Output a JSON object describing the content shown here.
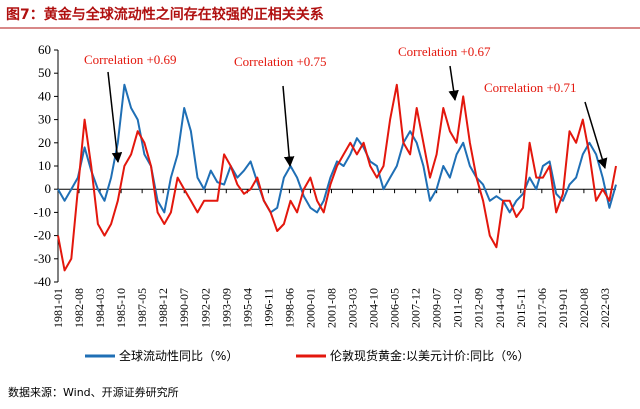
{
  "chart_data": {
    "type": "line",
    "title": "图7：黄金与全球流动性之间存在较强的正相关关系",
    "source": "数据来源：Wind、开源证券研究所",
    "x": [
      "1981-01",
      "1981-07",
      "1982-01",
      "1982-07",
      "1983-01",
      "1983-07",
      "1984-01",
      "1984-07",
      "1985-01",
      "1985-07",
      "1986-01",
      "1986-07",
      "1987-01",
      "1987-07",
      "1988-01",
      "1988-07",
      "1989-01",
      "1989-07",
      "1990-01",
      "1990-07",
      "1991-01",
      "1991-07",
      "1992-01",
      "1992-07",
      "1993-01",
      "1993-07",
      "1994-01",
      "1994-07",
      "1995-01",
      "1995-07",
      "1996-01",
      "1996-07",
      "1997-01",
      "1997-07",
      "1998-01",
      "1998-07",
      "1999-01",
      "1999-07",
      "2000-01",
      "2000-07",
      "2001-01",
      "2001-07",
      "2002-01",
      "2002-07",
      "2003-01",
      "2003-07",
      "2004-01",
      "2004-07",
      "2005-01",
      "2005-07",
      "2006-01",
      "2006-07",
      "2007-01",
      "2007-07",
      "2008-01",
      "2008-07",
      "2009-01",
      "2009-07",
      "2010-01",
      "2010-07",
      "2011-01",
      "2011-07",
      "2012-01",
      "2012-07",
      "2013-01",
      "2013-07",
      "2014-01",
      "2014-07",
      "2015-01",
      "2015-07",
      "2016-01",
      "2016-07",
      "2017-01",
      "2017-07",
      "2018-01",
      "2018-07",
      "2019-01",
      "2019-07",
      "2020-01",
      "2020-07",
      "2021-01",
      "2021-07",
      "2022-01",
      "2022-07",
      "2023-01"
    ],
    "series": [
      {
        "name": "全球流动性同比（%）",
        "color": "#1f6fb5",
        "values": [
          0,
          -5,
          0,
          5,
          18,
          8,
          0,
          -5,
          5,
          20,
          45,
          35,
          30,
          15,
          10,
          -5,
          -10,
          5,
          15,
          35,
          25,
          5,
          0,
          8,
          3,
          2,
          10,
          5,
          8,
          12,
          3,
          -5,
          -10,
          -8,
          5,
          10,
          5,
          -3,
          -8,
          -10,
          -5,
          5,
          12,
          10,
          15,
          22,
          18,
          12,
          10,
          0,
          5,
          10,
          20,
          25,
          20,
          10,
          -5,
          0,
          10,
          5,
          15,
          20,
          10,
          5,
          2,
          -5,
          -3,
          -5,
          -10,
          -5,
          -2,
          5,
          0,
          10,
          12,
          -2,
          -5,
          2,
          5,
          15,
          20,
          15,
          5,
          -8,
          2
        ]
      },
      {
        "name": "伦敦现货黄金:以美元计价:同比（%）",
        "color": "#e3170d",
        "values": [
          -20,
          -35,
          -30,
          0,
          30,
          10,
          -15,
          -20,
          -15,
          -5,
          10,
          15,
          25,
          20,
          10,
          -10,
          -15,
          -10,
          5,
          0,
          -5,
          -10,
          -5,
          -5,
          -5,
          15,
          10,
          2,
          -2,
          0,
          5,
          -5,
          -10,
          -18,
          -15,
          -5,
          -10,
          0,
          5,
          -5,
          -10,
          2,
          10,
          15,
          20,
          15,
          20,
          10,
          5,
          10,
          30,
          45,
          20,
          15,
          35,
          20,
          5,
          15,
          35,
          25,
          20,
          40,
          20,
          5,
          -5,
          -20,
          -25,
          -5,
          -5,
          -12,
          -8,
          20,
          5,
          5,
          10,
          -10,
          -2,
          25,
          20,
          30,
          15,
          -5,
          0,
          -5,
          10
        ]
      }
    ],
    "xticks": [
      "1981-01",
      "1982-08",
      "1984-03",
      "1985-10",
      "1987-05",
      "1988-12",
      "1990-07",
      "1992-02",
      "1993-09",
      "1995-04",
      "1996-11",
      "1998-06",
      "2000-01",
      "2001-08",
      "2003-03",
      "2004-10",
      "2006-05",
      "2007-12",
      "2009-07",
      "2011-02",
      "2012-09",
      "2014-04",
      "2015-11",
      "2017-06",
      "2019-01",
      "2020-08",
      "2022-03"
    ],
    "ylim": [
      -40,
      60
    ],
    "yticks": [
      -40,
      -30,
      -20,
      -10,
      0,
      10,
      20,
      30,
      40,
      50,
      60
    ],
    "annotations": [
      "Correlation +0.69",
      "Correlation +0.75",
      "Correlation +0.67",
      "Correlation +0.71"
    ]
  }
}
